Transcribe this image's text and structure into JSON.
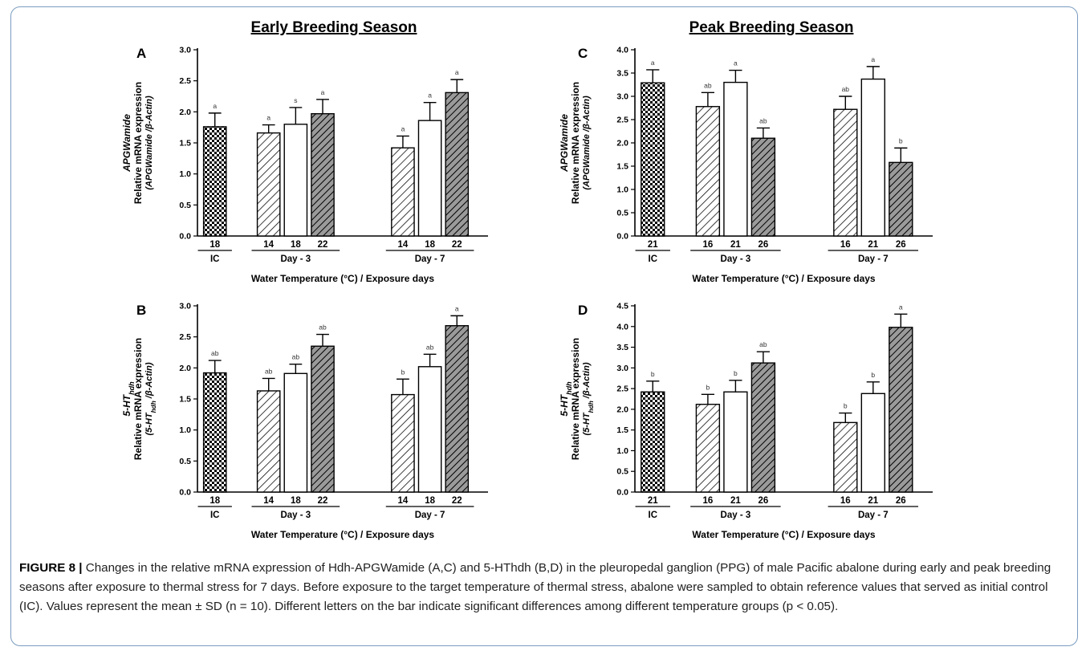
{
  "figure": {
    "season_titles": [
      "Early Breeding Season",
      "Peak Breeding Season"
    ],
    "caption": {
      "label": "FIGURE 8 |",
      "text": " Changes in the relative mRNA expression of Hdh-APGWamide (A,C) and 5-HThdh (B,D) in the pleuropedal ganglion (PPG) of male Pacific abalone during early and peak breeding seasons after exposure to thermal stress for 7 days. Before exposure to the target temperature of thermal stress, abalone were sampled to obtain reference values that served as initial control (IC). Values represent the mean ± SD (n = 10). Different letters on the bar indicate significant differences among different temperature groups (p < 0.05)."
    }
  },
  "chart_data": [
    {
      "panel": "A",
      "type": "bar",
      "title": "Early Breeding Season",
      "ylabel_gene": "APGWamide",
      "ylabel": "Relative mRNA expression",
      "ylabel_ratio": "(APGWamide /β-Actin)",
      "xlabel": "Water Temperature (°C) / Exposure days",
      "ylim": [
        0,
        3.0
      ],
      "yticks": [
        "0.0",
        "0.5",
        "1.0",
        "1.5",
        "2.0",
        "2.5",
        "3.0"
      ],
      "groups": [
        "IC",
        "Day - 3",
        "Day - 7"
      ],
      "categories": [
        "18",
        "14",
        "18",
        "22",
        "14",
        "18",
        "22"
      ],
      "patterns": [
        "check",
        "hatch",
        "plain",
        "dark",
        "hatch",
        "plain",
        "dark"
      ],
      "values": [
        1.76,
        1.66,
        1.8,
        1.97,
        1.42,
        1.86,
        2.31
      ],
      "errors": [
        0.22,
        0.13,
        0.27,
        0.23,
        0.19,
        0.29,
        0.21
      ],
      "letters": [
        "a",
        "a",
        "s",
        "a",
        "a",
        "a",
        "a"
      ]
    },
    {
      "panel": "B",
      "type": "bar",
      "title": "",
      "ylabel_gene": "5-HThdh",
      "ylabel": "Relative mRNA expression",
      "ylabel_ratio": "(5-HThdh /β-Actin)",
      "xlabel": "Water Temperature (°C) / Exposure days",
      "ylim": [
        0,
        3.0
      ],
      "yticks": [
        "0.0",
        "0.5",
        "1.0",
        "1.5",
        "2.0",
        "2.5",
        "3.0"
      ],
      "groups": [
        "IC",
        "Day - 3",
        "Day - 7"
      ],
      "categories": [
        "18",
        "14",
        "18",
        "22",
        "14",
        "18",
        "22"
      ],
      "patterns": [
        "check",
        "hatch",
        "plain",
        "dark",
        "hatch",
        "plain",
        "dark"
      ],
      "values": [
        1.92,
        1.63,
        1.91,
        2.35,
        1.57,
        2.02,
        2.68
      ],
      "errors": [
        0.2,
        0.2,
        0.15,
        0.19,
        0.25,
        0.2,
        0.16
      ],
      "letters": [
        "ab",
        "ab",
        "ab",
        "ab",
        "b",
        "ab",
        "a"
      ]
    },
    {
      "panel": "C",
      "type": "bar",
      "title": "Peak Breeding Season",
      "ylabel_gene": "APGWamide",
      "ylabel": "Relative mRNA expression",
      "ylabel_ratio": "(APGWamide /β-Actin)",
      "xlabel": "Water Temperature (°C) / Exposure days",
      "ylim": [
        0,
        4.0
      ],
      "yticks": [
        "0.0",
        "0.5",
        "1.0",
        "1.5",
        "2.0",
        "2.5",
        "3.0",
        "3.5",
        "4.0"
      ],
      "groups": [
        "IC",
        "Day - 3",
        "Day - 7"
      ],
      "categories": [
        "21",
        "16",
        "21",
        "26",
        "16",
        "21",
        "26"
      ],
      "patterns": [
        "check",
        "hatch",
        "plain",
        "dark",
        "hatch",
        "plain",
        "dark"
      ],
      "values": [
        3.29,
        2.78,
        3.3,
        2.1,
        2.72,
        3.37,
        1.58
      ],
      "errors": [
        0.28,
        0.3,
        0.26,
        0.22,
        0.28,
        0.27,
        0.31
      ],
      "letters": [
        "a",
        "ab",
        "a",
        "ab",
        "ab",
        "a",
        "b"
      ]
    },
    {
      "panel": "D",
      "type": "bar",
      "title": "",
      "ylabel_gene": "5-HThdh",
      "ylabel": "Relative mRNA expression",
      "ylabel_ratio": "(5-HThdh /β-Actin)",
      "xlabel": "Water Temperature (°C) / Exposure days",
      "ylim": [
        0,
        4.5
      ],
      "yticks": [
        "0.0",
        "0.5",
        "1.0",
        "1.5",
        "2.0",
        "2.5",
        "3.0",
        "3.5",
        "4.0",
        "4.5"
      ],
      "groups": [
        "IC",
        "Day - 3",
        "Day - 7"
      ],
      "categories": [
        "21",
        "16",
        "21",
        "26",
        "16",
        "21",
        "26"
      ],
      "patterns": [
        "check",
        "hatch",
        "plain",
        "dark",
        "hatch",
        "plain",
        "dark"
      ],
      "values": [
        2.42,
        2.12,
        2.42,
        3.12,
        1.68,
        2.38,
        3.98
      ],
      "errors": [
        0.26,
        0.24,
        0.28,
        0.27,
        0.23,
        0.28,
        0.32
      ],
      "letters": [
        "b",
        "b",
        "b",
        "ab",
        "b",
        "b",
        "a"
      ]
    }
  ]
}
